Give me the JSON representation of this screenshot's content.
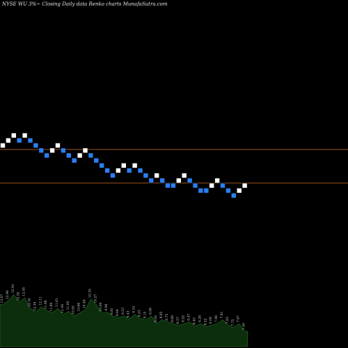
{
  "header": {
    "title": "NYSE WU  3%~  Closing Daily data  Renko  charts MunafaSutra.com"
  },
  "colors": {
    "background": "#000000",
    "up": "#ffffff",
    "down": "#2a7ff0",
    "line": "#a0521a",
    "volume": "#0c2e0c",
    "volume_edge": "#1f5a1f",
    "vol_text": "#cfd8cf"
  },
  "chart_data": {
    "type": "renko",
    "title": "NYSE WU  3%~  Closing Daily data  Renko  charts MunafaSutra.com",
    "brick_size_percent": 3,
    "bricks": [
      {
        "dir": "up",
        "level": 0
      },
      {
        "dir": "up",
        "level": 1
      },
      {
        "dir": "up",
        "level": 2
      },
      {
        "dir": "down",
        "level": 1
      },
      {
        "dir": "up",
        "level": 2
      },
      {
        "dir": "down",
        "level": 1
      },
      {
        "dir": "down",
        "level": 0
      },
      {
        "dir": "down",
        "level": -1
      },
      {
        "dir": "down",
        "level": -2
      },
      {
        "dir": "up",
        "level": -1
      },
      {
        "dir": "up",
        "level": 0
      },
      {
        "dir": "down",
        "level": -1
      },
      {
        "dir": "down",
        "level": -2
      },
      {
        "dir": "down",
        "level": -3
      },
      {
        "dir": "up",
        "level": -2
      },
      {
        "dir": "up",
        "level": -1
      },
      {
        "dir": "down",
        "level": -2
      },
      {
        "dir": "down",
        "level": -3
      },
      {
        "dir": "down",
        "level": -4
      },
      {
        "dir": "down",
        "level": -5
      },
      {
        "dir": "down",
        "level": -6
      },
      {
        "dir": "up",
        "level": -5
      },
      {
        "dir": "up",
        "level": -4
      },
      {
        "dir": "down",
        "level": -5
      },
      {
        "dir": "up",
        "level": -4
      },
      {
        "dir": "down",
        "level": -5
      },
      {
        "dir": "down",
        "level": -6
      },
      {
        "dir": "down",
        "level": -7
      },
      {
        "dir": "up",
        "level": -6
      },
      {
        "dir": "down",
        "level": -7
      },
      {
        "dir": "down",
        "level": -8
      },
      {
        "dir": "down",
        "level": -8
      },
      {
        "dir": "up",
        "level": -7
      },
      {
        "dir": "up",
        "level": -6
      },
      {
        "dir": "down",
        "level": -7
      },
      {
        "dir": "down",
        "level": -8
      },
      {
        "dir": "down",
        "level": -9
      },
      {
        "dir": "down",
        "level": -9
      },
      {
        "dir": "up",
        "level": -8
      },
      {
        "dir": "up",
        "level": -7
      },
      {
        "dir": "down",
        "level": -8
      },
      {
        "dir": "down",
        "level": -9
      },
      {
        "dir": "down",
        "level": -10
      },
      {
        "dir": "up",
        "level": -9
      },
      {
        "dir": "up",
        "level": -8
      }
    ],
    "reference_lines": [
      {
        "level": -0.8
      },
      {
        "level": -7.5
      }
    ],
    "volume": [
      0.55,
      0.6,
      0.68,
      0.58,
      0.64,
      0.5,
      0.45,
      0.52,
      0.47,
      0.44,
      0.5,
      0.42,
      0.46,
      0.4,
      0.44,
      0.48,
      0.62,
      0.55,
      0.44,
      0.45,
      0.4,
      0.38,
      0.4,
      0.36,
      0.42,
      0.37,
      0.35,
      0.4,
      0.3,
      0.35,
      0.32,
      0.3,
      0.28,
      0.3,
      0.32,
      0.27,
      0.3,
      0.26,
      0.28,
      0.3,
      0.35,
      0.28,
      0.25,
      0.3,
      0.2
    ],
    "volume_labels": [
      "13.07",
      "12.96",
      "12.93",
      "12.55",
      "12.45",
      "12.30",
      "12.30",
      "12.11",
      "11.98",
      "11.89",
      "11.61",
      "11.44",
      "11.00",
      "10.95",
      "10.66",
      "10.48",
      "10.35",
      "10.27",
      "10.09",
      "9.99",
      "9.81",
      "9.64",
      "9.53",
      "9.43",
      "9.34",
      "9.23",
      "9.15",
      "9.06",
      "8.92",
      "8.85",
      "8.75",
      "8.68",
      "8.57",
      "8.52",
      "8.47",
      "8.40",
      "8.28",
      "8.22",
      "8.09",
      "7.98",
      "7.91",
      "7.83",
      "7.75",
      "7.67",
      "7.49"
    ]
  }
}
